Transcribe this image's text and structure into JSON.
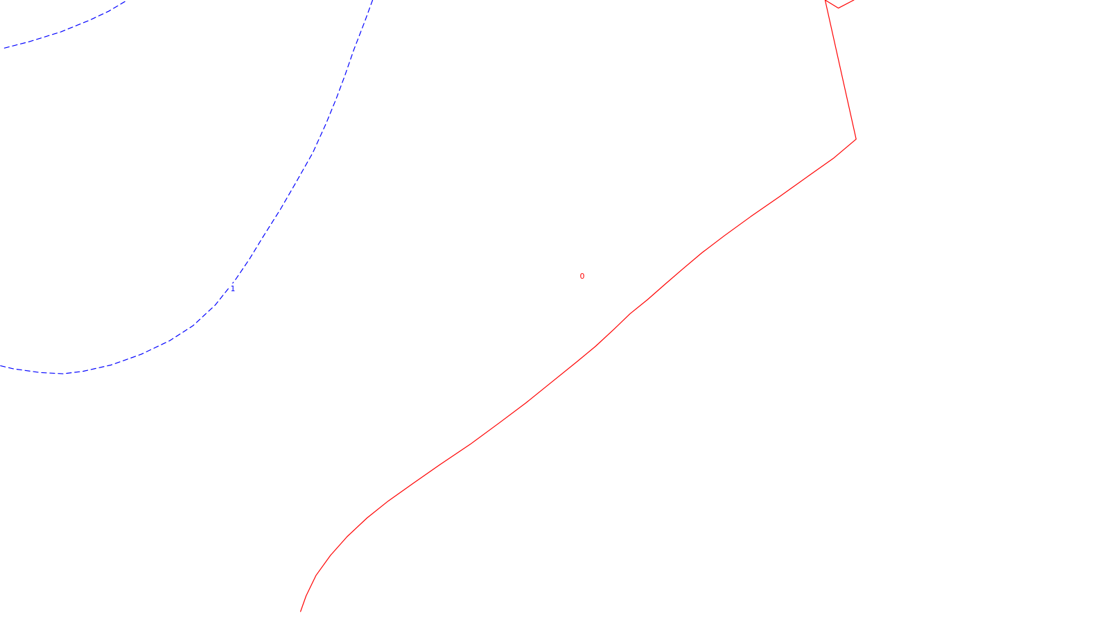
{
  "chart_data": {
    "type": "contour",
    "title": "",
    "xlabel": "",
    "ylabel": "",
    "grid": false,
    "legend": "none",
    "contours": [
      {
        "level": "1",
        "color": "#0000ff",
        "line_style": "dashed",
        "segments": [
          {
            "id": "level-1-upper",
            "points": [
              [
                0.004,
                0.077
              ],
              [
                0.026,
                0.067
              ],
              [
                0.055,
                0.051
              ],
              [
                0.08,
                0.033
              ],
              [
                0.098,
                0.018
              ],
              [
                0.115,
                0
              ]
            ]
          },
          {
            "id": "level-1-main",
            "points": [
              [
                0.336,
                0
              ],
              [
                0.329,
                0.034
              ],
              [
                0.319,
                0.08
              ],
              [
                0.311,
                0.121
              ],
              [
                0.303,
                0.159
              ],
              [
                0.294,
                0.198
              ],
              [
                0.282,
                0.245
              ],
              [
                0.267,
                0.292
              ],
              [
                0.253,
                0.335
              ],
              [
                0.237,
                0.38
              ],
              [
                0.225,
                0.415
              ],
              [
                0.212,
                0.449
              ],
              [
                0.194,
                0.489
              ],
              [
                0.174,
                0.522
              ],
              [
                0.153,
                0.546
              ],
              [
                0.127,
                0.568
              ],
              [
                0.1,
                0.585
              ],
              [
                0.075,
                0.595
              ],
              [
                0.057,
                0.599
              ],
              [
                0.036,
                0.597
              ],
              [
                0.012,
                0.591
              ],
              [
                0,
                0.586
              ]
            ]
          }
        ],
        "label": {
          "text": "1",
          "x": 0.21,
          "y": 0.463
        }
      },
      {
        "level": "0",
        "color": "#ff0000",
        "line_style": "solid",
        "segments": [
          {
            "id": "level-0-main",
            "points": [
              [
                0.271,
                0.98
              ],
              [
                0.276,
                0.955
              ],
              [
                0.285,
                0.922
              ],
              [
                0.298,
                0.89
              ],
              [
                0.313,
                0.86
              ],
              [
                0.331,
                0.83
              ],
              [
                0.35,
                0.803
              ],
              [
                0.373,
                0.774
              ],
              [
                0.398,
                0.743
              ],
              [
                0.424,
                0.712
              ],
              [
                0.45,
                0.678
              ],
              [
                0.474,
                0.646
              ],
              [
                0.497,
                0.613
              ],
              [
                0.52,
                0.58
              ],
              [
                0.537,
                0.555
              ],
              [
                0.554,
                0.527
              ],
              [
                0.568,
                0.503
              ],
              [
                0.584,
                0.48
              ],
              [
                0.6,
                0.455
              ],
              [
                0.615,
                0.432
              ],
              [
                0.633,
                0.405
              ],
              [
                0.653,
                0.378
              ],
              [
                0.677,
                0.347
              ],
              [
                0.703,
                0.315
              ],
              [
                0.729,
                0.282
              ],
              [
                0.752,
                0.253
              ],
              [
                0.772,
                0.223
              ],
              [
                0.744,
                0
              ],
              [
                0.756,
                0.013
              ],
              [
                0.77,
                0
              ]
            ]
          }
        ],
        "label": {
          "text": "0",
          "x": 0.525,
          "y": 0.443
        }
      }
    ]
  }
}
